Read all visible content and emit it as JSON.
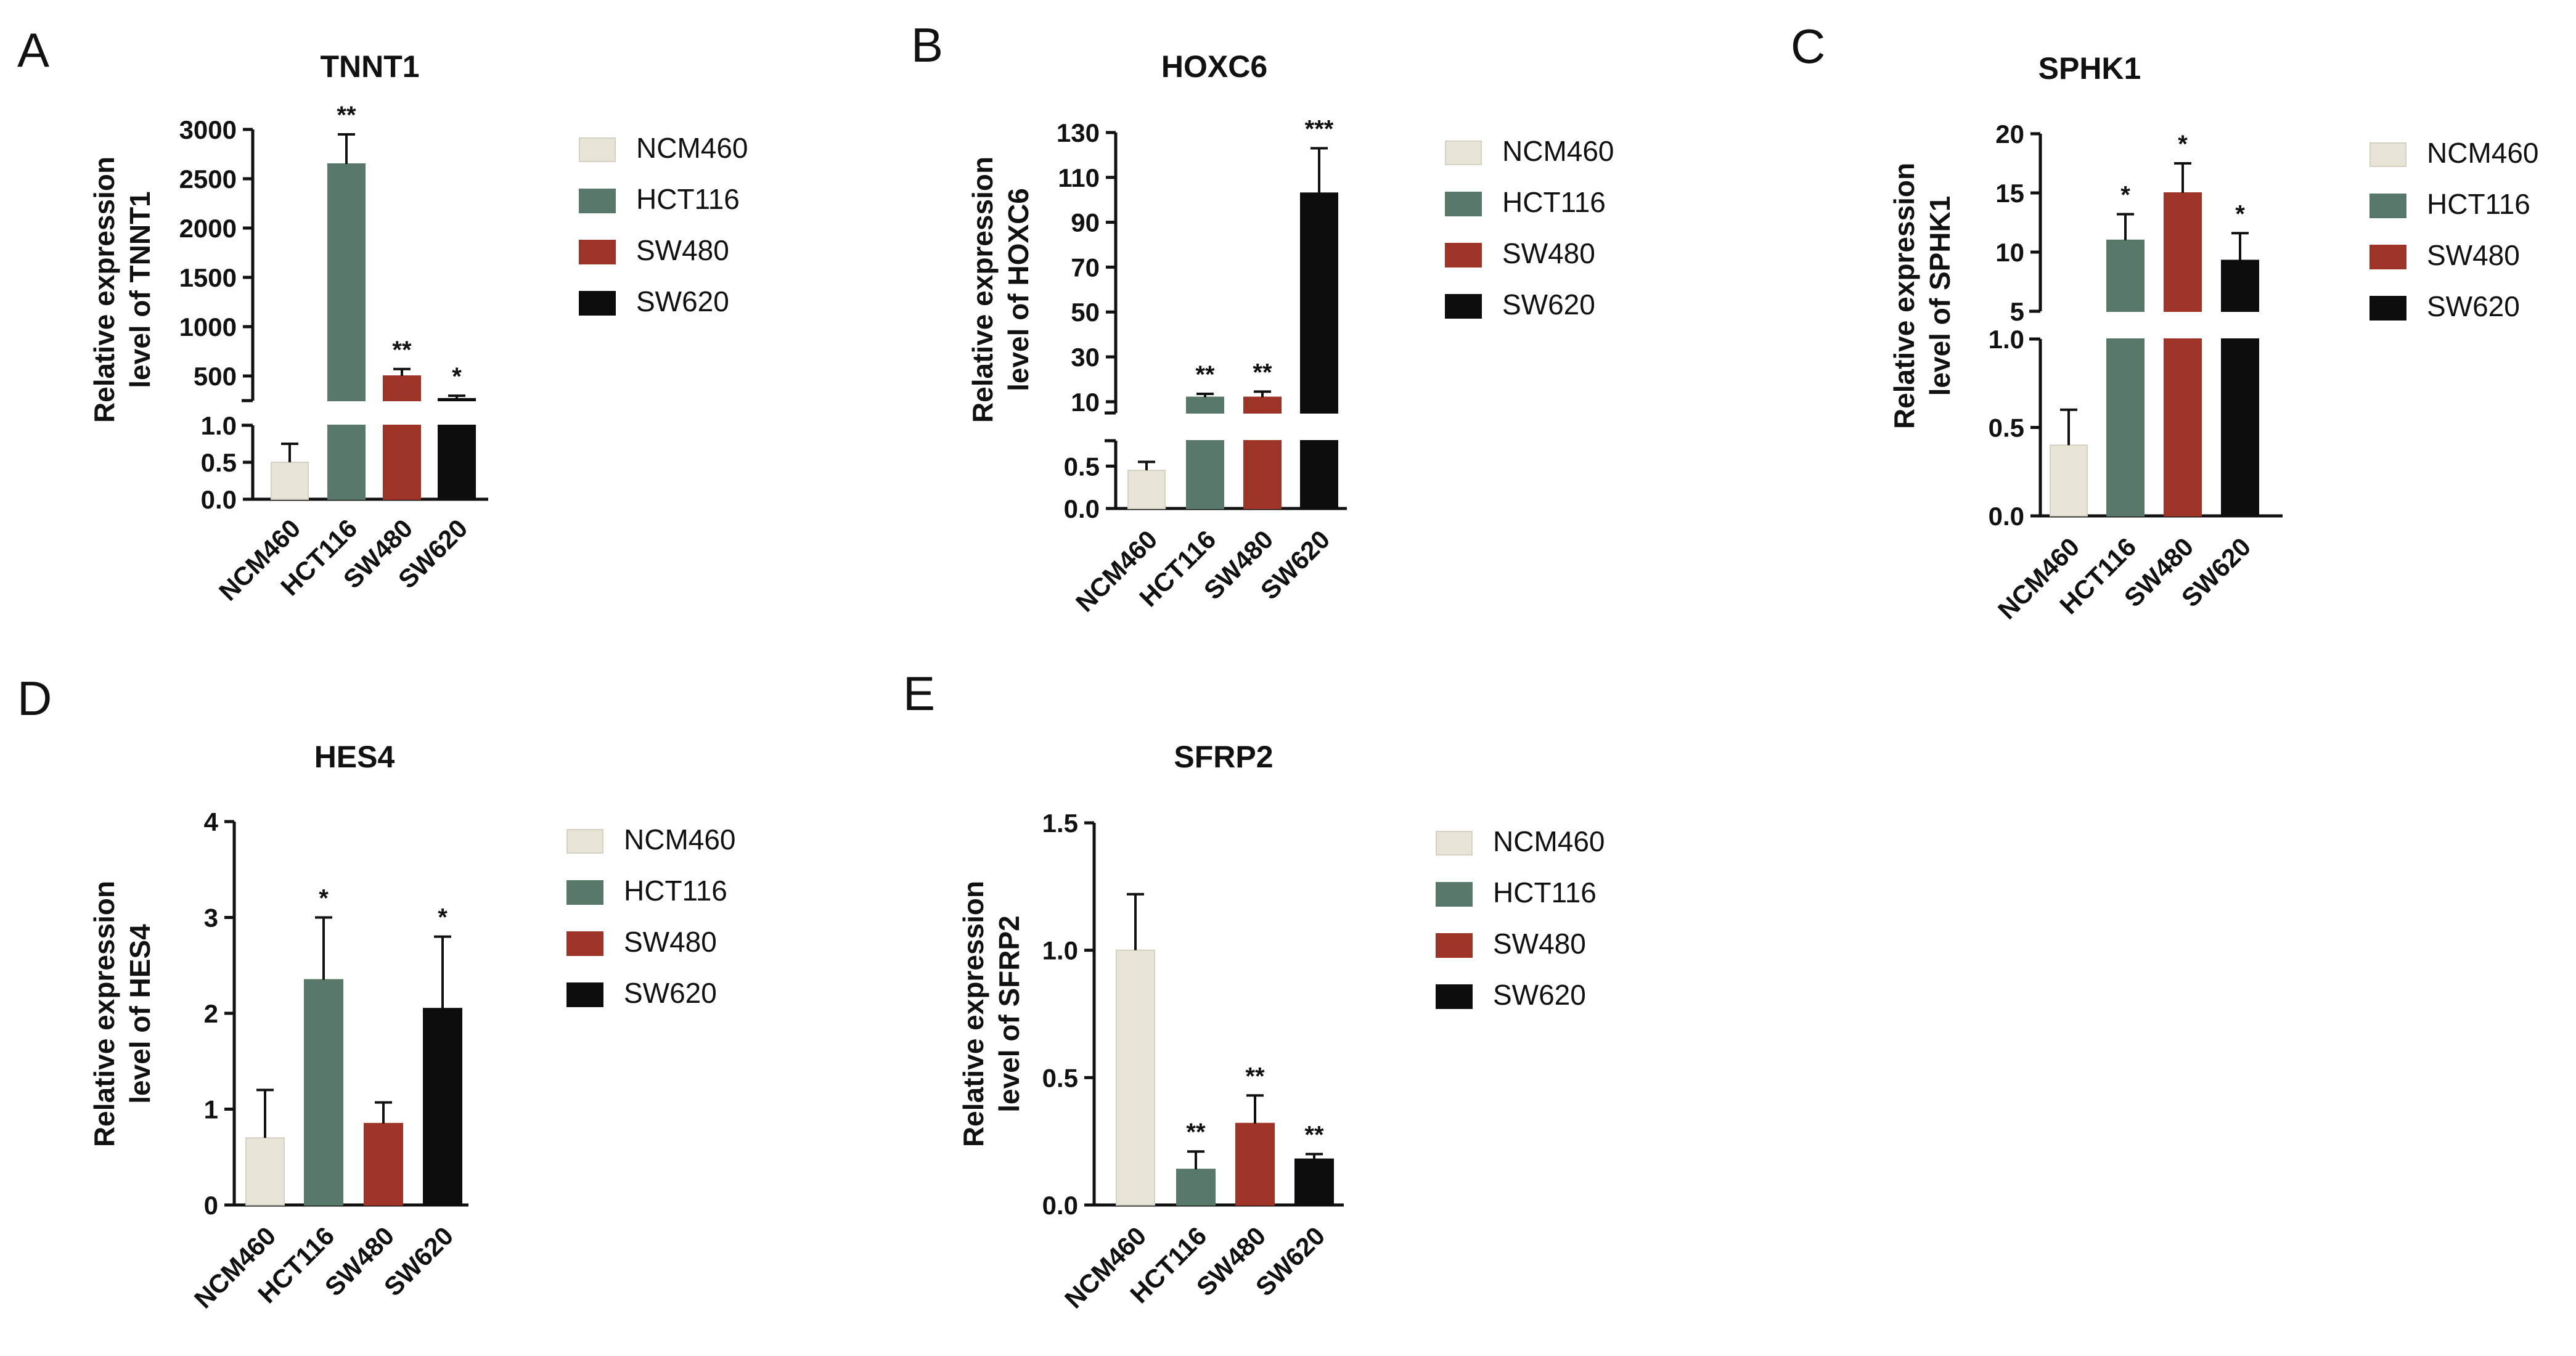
{
  "legend_colors": {
    "NCM460": "#e8e4d8",
    "HCT116": "#587869",
    "SW480": "#9e3327",
    "SW620": "#0d0d0d"
  },
  "chart_data": [
    {
      "panel": "A",
      "type": "bar",
      "title": "TNNT1",
      "ylabel_line1": "Relative expression",
      "ylabel_line2": "level of TNNT1",
      "categories": [
        "NCM460",
        "HCT116",
        "SW480",
        "SW620"
      ],
      "values": [
        0.5,
        2650,
        500,
        270
      ],
      "errors": [
        0.25,
        300,
        70,
        30
      ],
      "significance": [
        "",
        "**",
        "**",
        "*"
      ],
      "broken_axis": true,
      "lower_range": [
        0,
        1.0
      ],
      "lower_ticks": [
        "0.0",
        "0.5",
        "1.0"
      ],
      "upper_range": [
        250,
        3000
      ],
      "upper_ticks": [
        "500",
        "1000",
        "1500",
        "2000",
        "2500",
        "3000"
      ],
      "legend": [
        "NCM460",
        "HCT116",
        "SW480",
        "SW620"
      ]
    },
    {
      "panel": "B",
      "type": "bar",
      "title": "HOXC6",
      "ylabel_line1": "Relative expression",
      "ylabel_line2": "level of HOXC6",
      "categories": [
        "NCM460",
        "HCT116",
        "SW480",
        "SW620"
      ],
      "values": [
        0.45,
        12,
        12,
        103
      ],
      "errors": [
        0.1,
        1.5,
        2.5,
        20
      ],
      "significance": [
        "",
        "**",
        "**",
        "***"
      ],
      "broken_axis": true,
      "lower_range": [
        0,
        0.8
      ],
      "lower_ticks": [
        "0.0",
        "0.5"
      ],
      "upper_range": [
        5,
        130
      ],
      "upper_ticks": [
        "10",
        "30",
        "50",
        "70",
        "90",
        "110",
        "130"
      ],
      "legend": [
        "NCM460",
        "HCT116",
        "SW480",
        "SW620"
      ]
    },
    {
      "panel": "C",
      "type": "bar",
      "title": "SPHK1",
      "ylabel_line1": "Relative expression",
      "ylabel_line2": "level of SPHK1",
      "categories": [
        "NCM460",
        "HCT116",
        "SW480",
        "SW620"
      ],
      "values": [
        0.4,
        11,
        15,
        9.3
      ],
      "errors": [
        0.2,
        2.2,
        2.5,
        2.3
      ],
      "significance": [
        "",
        "*",
        "*",
        "*"
      ],
      "broken_axis": true,
      "lower_range": [
        0,
        1.0
      ],
      "lower_ticks": [
        "0.0",
        "0.5",
        "1.0"
      ],
      "upper_range": [
        5,
        20
      ],
      "upper_ticks": [
        "5",
        "10",
        "15",
        "20"
      ],
      "legend": [
        "NCM460",
        "HCT116",
        "SW480",
        "SW620"
      ]
    },
    {
      "panel": "D",
      "type": "bar",
      "title": "HES4",
      "ylabel_line1": "Relative expression",
      "ylabel_line2": "level of HES4",
      "categories": [
        "NCM460",
        "HCT116",
        "SW480",
        "SW620"
      ],
      "values": [
        0.7,
        2.35,
        0.85,
        2.05
      ],
      "errors": [
        0.5,
        0.65,
        0.22,
        0.75
      ],
      "significance": [
        "",
        "*",
        "",
        "*"
      ],
      "broken_axis": false,
      "ylim": [
        0,
        4
      ],
      "yticks": [
        "0",
        "1",
        "2",
        "3",
        "4"
      ],
      "legend": [
        "NCM460",
        "HCT116",
        "SW480",
        "SW620"
      ]
    },
    {
      "panel": "E",
      "type": "bar",
      "title": "SFRP2",
      "ylabel_line1": "Relative expression",
      "ylabel_line2": "level of SFRP2",
      "categories": [
        "NCM460",
        "HCT116",
        "SW480",
        "SW620"
      ],
      "values": [
        1.0,
        0.14,
        0.32,
        0.18
      ],
      "errors": [
        0.22,
        0.07,
        0.11,
        0.02
      ],
      "significance": [
        "",
        "**",
        "**",
        "**"
      ],
      "broken_axis": false,
      "ylim": [
        0,
        1.5
      ],
      "yticks": [
        "0.0",
        "0.5",
        "1.0",
        "1.5"
      ],
      "legend": [
        "NCM460",
        "HCT116",
        "SW480",
        "SW620"
      ]
    }
  ]
}
